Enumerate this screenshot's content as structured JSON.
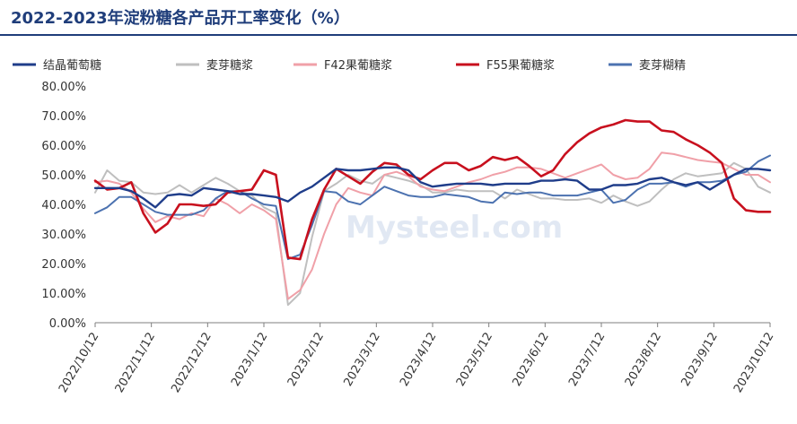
{
  "title": "2022-2023年淀粉糖各产品开工率变化（%）",
  "watermark": "Mysteel.com",
  "chart_data": {
    "type": "line",
    "title": "2022-2023年淀粉糖各产品开工率变化（%）",
    "ylim": [
      0,
      80
    ],
    "yticks": [
      "0.00%",
      "10.00%",
      "20.00%",
      "30.00%",
      "40.00%",
      "50.00%",
      "60.00%",
      "70.00%",
      "80.00%"
    ],
    "xticks": [
      "2022/10/12",
      "2022/11/12",
      "2022/12/12",
      "2023/1/12",
      "2023/2/12",
      "2023/3/12",
      "2023/4/12",
      "2023/5/12",
      "2023/6/12",
      "2023/7/12",
      "2023/8/12",
      "2023/9/12",
      "2023/10/12"
    ],
    "grid": false,
    "legend_position": "top",
    "series": [
      {
        "name": "结晶葡萄糖",
        "color": "#1f3d8a",
        "values": [
          45.5,
          45.5,
          45.5,
          44.5,
          42,
          39,
          43,
          43.5,
          43,
          45.5,
          45,
          44.5,
          43.5,
          43.5,
          43,
          42.5,
          41,
          44,
          46,
          49,
          52,
          51.5,
          51.5,
          52,
          52.5,
          52.5,
          51.5,
          47.5,
          46,
          46.5,
          47,
          47,
          47,
          46.5,
          47,
          47,
          47,
          48,
          48,
          48.5,
          48,
          45,
          45,
          46.5,
          46.5,
          47,
          48.5,
          49,
          47.5,
          46.5,
          47.5,
          45,
          47.5,
          50,
          52,
          52,
          51.5
        ]
      },
      {
        "name": "麦芽糖浆",
        "color": "#bfbfbf",
        "values": [
          44,
          51.5,
          48,
          47.5,
          44,
          43.5,
          44,
          46.5,
          44,
          46.5,
          49,
          47,
          44.5,
          43,
          39,
          37,
          6,
          10,
          29,
          44.5,
          47,
          50,
          48,
          47,
          50,
          49,
          48,
          46.5,
          44,
          44,
          45,
          44.5,
          44.5,
          44.5,
          42,
          45,
          43.5,
          42,
          42,
          41.5,
          41.5,
          42,
          40.5,
          43,
          41,
          39.5,
          41,
          45,
          48.5,
          50.5,
          49.5,
          50,
          50.5,
          54,
          52,
          46,
          44
        ]
      },
      {
        "name": "F42果葡糖浆",
        "color": "#f0a0a8",
        "values": [
          47.5,
          48,
          47,
          44,
          38.5,
          34,
          36,
          35,
          37,
          36,
          42,
          40,
          37,
          40,
          38,
          35,
          8,
          11,
          18,
          30,
          40,
          45.5,
          44,
          43,
          50,
          51,
          49.5,
          46,
          45,
          44.5,
          46,
          47.5,
          48.5,
          50,
          51,
          52.5,
          52.5,
          52,
          50.5,
          49,
          50.5,
          52,
          53.5,
          50,
          48.5,
          49,
          52,
          57.5,
          57,
          56,
          55,
          54.5,
          54,
          52,
          50,
          50,
          47.5
        ]
      },
      {
        "name": "F55果葡糖浆",
        "color": "#c8101e",
        "values": [
          48,
          45,
          45.5,
          47.5,
          37,
          30.5,
          33.5,
          40,
          40,
          39.5,
          40,
          44,
          44.5,
          45,
          51.5,
          50,
          22,
          21.5,
          35,
          45,
          52,
          49.5,
          47,
          51,
          54,
          53.5,
          50,
          48.5,
          51.5,
          54,
          54,
          51.5,
          53,
          56,
          55,
          56,
          53,
          49.5,
          51.5,
          57,
          61,
          64,
          66,
          67,
          68.5,
          68,
          68,
          65,
          64.5,
          62,
          60,
          57.5,
          54,
          42,
          38,
          37.5,
          37.5
        ]
      },
      {
        "name": "麦芽糊精",
        "color": "#4c72b0",
        "values": [
          37,
          39,
          42.5,
          42.5,
          40,
          37.5,
          36.5,
          36.5,
          36.5,
          38,
          42,
          44.5,
          44.5,
          42,
          40,
          39.5,
          21.5,
          23,
          33,
          44.5,
          44,
          41,
          40,
          43,
          46,
          44.5,
          43,
          42.5,
          42.5,
          43.5,
          43,
          42.5,
          41,
          40.5,
          44,
          43.5,
          44,
          44,
          43,
          43,
          43,
          44,
          45,
          40.5,
          41.5,
          45,
          47,
          47,
          47.5,
          46,
          47.5,
          47.5,
          48,
          50,
          51,
          54.5,
          56.5
        ]
      }
    ]
  }
}
